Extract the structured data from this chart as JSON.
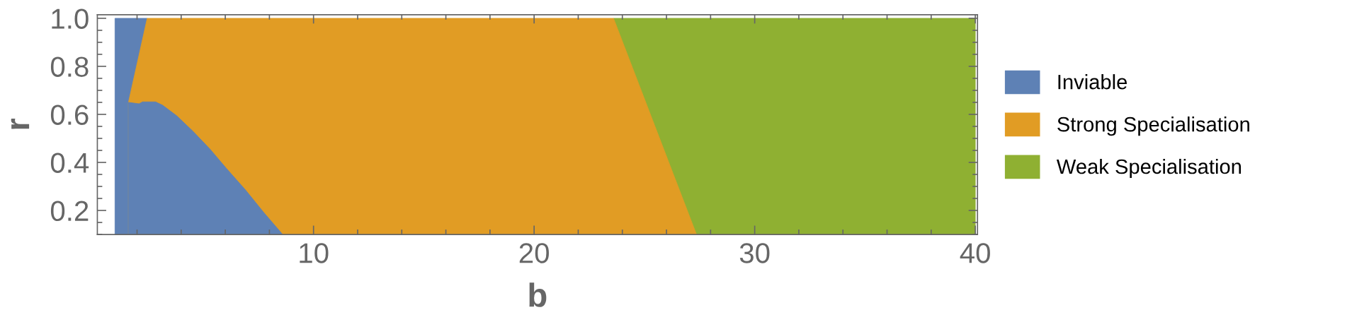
{
  "chart_data": {
    "type": "area",
    "xlabel": "b",
    "ylabel": "r",
    "series": [
      {
        "name": "Inviable",
        "color": "#5e81b5",
        "x": [
          1.61,
          2.09,
          2.25,
          2.84,
          3.16,
          3.8,
          4.54,
          5.31,
          6.05,
          6.91,
          7.72,
          8.6
        ],
        "values": [
          0.65,
          0.644,
          0.652,
          0.652,
          0.638,
          0.594,
          0.529,
          0.455,
          0.375,
          0.286,
          0.194,
          0.1
        ]
      },
      {
        "name": "Strong Specialisation",
        "color": "#e19c24",
        "x": [
          1.61,
          2.46,
          23.6,
          27.36
        ],
        "values": [
          0.65,
          1.0,
          1.0,
          0.1
        ]
      },
      {
        "color": "#5e81b5",
        "x": [
          1,
          2.46
        ],
        "values": [
          1.0,
          1.0
        ]
      },
      {
        "name": "Weak Specialisation",
        "color": "#8fb032",
        "x": [
          23.6,
          40
        ],
        "values": [
          1.0,
          1.0
        ]
      }
    ],
    "xlim": [
      0.2,
      40.1
    ],
    "ylim": [
      0.1,
      1.015
    ],
    "xticks": [
      {
        "value": 2,
        "label": null
      },
      {
        "value": 4,
        "label": null
      },
      {
        "value": 6,
        "label": null
      },
      {
        "value": 8,
        "label": null
      },
      10,
      {
        "value": 12,
        "label": null
      },
      {
        "value": 14,
        "label": null
      },
      {
        "value": 16,
        "label": null
      },
      {
        "value": 18,
        "label": null
      },
      20,
      {
        "value": 22,
        "label": null
      },
      {
        "value": 24,
        "label": null
      },
      {
        "value": 26,
        "label": null
      },
      {
        "value": 28,
        "label": null
      },
      30,
      {
        "value": 32,
        "label": null
      },
      {
        "value": 34,
        "label": null
      },
      {
        "value": 36,
        "label": null
      },
      {
        "value": 38,
        "label": null
      },
      40
    ],
    "yticks": [
      {
        "value": 0.1,
        "label": null
      },
      {
        "value": 0.15,
        "label": null
      },
      0.2,
      {
        "value": 0.25,
        "label": null
      },
      {
        "value": 0.3,
        "label": null
      },
      {
        "value": 0.35,
        "label": null
      },
      0.4,
      {
        "value": 0.45,
        "label": null
      },
      {
        "value": 0.5,
        "label": null
      },
      {
        "value": 0.55,
        "label": null
      },
      0.6,
      {
        "value": 0.65,
        "label": null
      },
      {
        "value": 0.7,
        "label": null
      },
      {
        "value": 0.75,
        "label": null
      },
      0.8,
      {
        "value": 0.85,
        "label": null
      },
      {
        "value": 0.9,
        "label": null
      },
      {
        "value": 0.95,
        "label": null
      },
      {
        "value": 1.0,
        "label": "1.0"
      }
    ],
    "grid": false,
    "legend": "right"
  }
}
